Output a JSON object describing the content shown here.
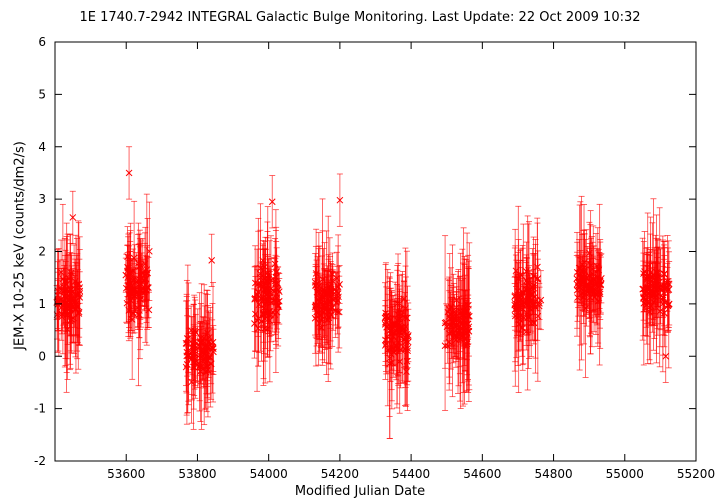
{
  "chart_data": {
    "type": "scatter",
    "title": "1E 1740.7-2942   INTEGRAL Galactic Bulge Monitoring.  Last Update: 22 Oct 2009 10:32",
    "xlabel": "Modified Julian Date",
    "ylabel": "JEM-X 10-25 keV (counts/dm2/s)",
    "xlim": [
      53400,
      55200
    ],
    "ylim": [
      -2,
      6
    ],
    "xticks": [
      53600,
      53800,
      54000,
      54200,
      54400,
      54600,
      54800,
      55000,
      55200
    ],
    "yticks": [
      -2,
      -1,
      0,
      1,
      2,
      3,
      4,
      5,
      6
    ],
    "grid": false,
    "marker": "x",
    "error_bars": true,
    "color": "#ff0000",
    "observation_windows": [
      {
        "mjd_start": 53402,
        "mjd_end": 53470,
        "mean": 1.1,
        "spread": 0.35
      },
      {
        "mjd_start": 53598,
        "mjd_end": 53665,
        "mean": 1.35,
        "spread": 0.45
      },
      {
        "mjd_start": 53765,
        "mjd_end": 53845,
        "mean": 0.05,
        "spread": 0.35
      },
      {
        "mjd_start": 53960,
        "mjd_end": 54030,
        "mean": 1.15,
        "spread": 0.45
      },
      {
        "mjd_start": 54130,
        "mjd_end": 54200,
        "mean": 1.1,
        "spread": 0.4
      },
      {
        "mjd_start": 54325,
        "mjd_end": 54395,
        "mean": 0.45,
        "spread": 0.5
      },
      {
        "mjd_start": 54495,
        "mjd_end": 54565,
        "mean": 0.65,
        "spread": 0.4
      },
      {
        "mjd_start": 54690,
        "mjd_end": 54765,
        "mean": 1.1,
        "spread": 0.4
      },
      {
        "mjd_start": 54865,
        "mjd_end": 54935,
        "mean": 1.4,
        "spread": 0.35
      },
      {
        "mjd_start": 55050,
        "mjd_end": 55125,
        "mean": 1.25,
        "spread": 0.35
      }
    ],
    "notable_points": [
      {
        "x": 53608,
        "y": 3.5
      },
      {
        "x": 53450,
        "y": 2.65
      },
      {
        "x": 54200,
        "y": 2.98
      },
      {
        "x": 54010,
        "y": 2.95
      },
      {
        "x": 53840,
        "y": 1.83
      },
      {
        "x": 55115,
        "y": 0.0
      }
    ]
  }
}
